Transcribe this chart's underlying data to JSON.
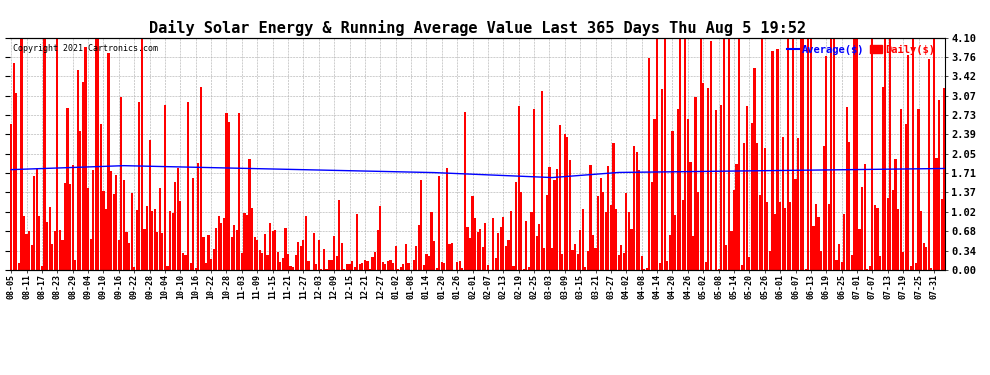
{
  "title": "Daily Solar Energy & Running Average Value Last 365 Days Thu Aug 5 19:52",
  "copyright": "Copyright 2021 Cartronics.com",
  "ylabel_right": [
    "4.10",
    "3.76",
    "3.42",
    "3.07",
    "2.73",
    "2.39",
    "2.05",
    "1.71",
    "1.37",
    "1.02",
    "0.68",
    "0.34",
    "0.00"
  ],
  "yticks": [
    4.1,
    3.76,
    3.42,
    3.07,
    2.73,
    2.39,
    2.05,
    1.71,
    1.37,
    1.02,
    0.68,
    0.34,
    0.0
  ],
  "ymax": 4.1,
  "ymin": 0.0,
  "bar_color": "#FF0000",
  "avg_color": "#0000FF",
  "background_color": "#FFFFFF",
  "title_fontsize": 11,
  "legend_avg": "Average($)",
  "legend_daily": "Daily($)",
  "x_tick_labels": [
    "08-05",
    "08-11",
    "08-17",
    "08-23",
    "08-29",
    "09-04",
    "09-10",
    "09-16",
    "09-22",
    "09-28",
    "10-04",
    "10-10",
    "10-16",
    "10-22",
    "10-28",
    "11-03",
    "11-09",
    "11-15",
    "11-21",
    "11-27",
    "12-03",
    "12-09",
    "12-15",
    "12-21",
    "12-27",
    "01-02",
    "01-08",
    "01-14",
    "01-20",
    "01-26",
    "02-01",
    "02-07",
    "02-13",
    "02-19",
    "02-25",
    "03-03",
    "03-09",
    "03-15",
    "03-21",
    "03-27",
    "04-02",
    "04-08",
    "04-14",
    "04-20",
    "04-26",
    "05-02",
    "05-08",
    "05-14",
    "05-20",
    "05-26",
    "06-01",
    "06-07",
    "06-13",
    "06-19",
    "06-25",
    "07-01",
    "07-07",
    "07-13",
    "07-19",
    "07-25",
    "07-31"
  ]
}
